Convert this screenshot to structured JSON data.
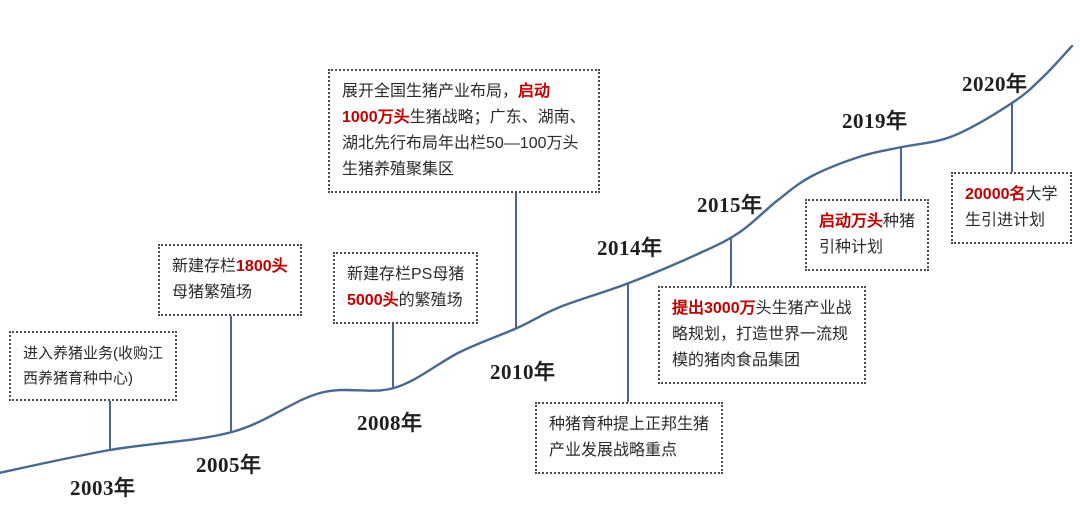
{
  "colors": {
    "curve": "#49688f",
    "accent_red": "#c00000",
    "text": "#2b2b2b",
    "border": "#4a4a52"
  },
  "timeline": {
    "milestones": [
      {
        "year": "2003年",
        "note_segments": [
          {
            "text": "进入养猪业务(收购江\n西养猪育种中心)",
            "em": false
          }
        ]
      },
      {
        "year": "2005年",
        "note_segments": [
          {
            "text": "新建存栏",
            "em": false
          },
          {
            "text": "1800头",
            "em": true
          },
          {
            "text": "\n母猪繁殖场",
            "em": false
          }
        ]
      },
      {
        "year": "2008年",
        "note_segments": [
          {
            "text": "新建存栏PS母猪\n",
            "em": false
          },
          {
            "text": "5000头",
            "em": true
          },
          {
            "text": "的繁殖场",
            "em": false
          }
        ]
      },
      {
        "year": "2010年",
        "note_segments": [
          {
            "text": "展开全国生猪产业布局，",
            "em": false
          },
          {
            "text": "启动\n1000万头",
            "em": true
          },
          {
            "text": "生猪战略；广东、湖南、\n湖北先行布局年出栏50—100万头\n生猪养殖聚集区",
            "em": false
          }
        ]
      },
      {
        "year": "2014年",
        "note_segments": [
          {
            "text": "种猪育种提上正邦生猪\n产业发展战略重点",
            "em": false
          }
        ]
      },
      {
        "year": "2015年",
        "note_segments": [
          {
            "text": "提出3000万",
            "em": true
          },
          {
            "text": "头生猪产业战\n略规划，打造世界一流规\n模的猪肉食品集团",
            "em": false
          }
        ]
      },
      {
        "year": "2019年",
        "note_segments": [
          {
            "text": "启动万头",
            "em": true
          },
          {
            "text": "种猪\n引种计划",
            "em": false
          }
        ]
      },
      {
        "year": "2020年",
        "note_segments": [
          {
            "text": "20000名",
            "em": true
          },
          {
            "text": "大学\n生引进计划",
            "em": false
          }
        ]
      }
    ]
  }
}
